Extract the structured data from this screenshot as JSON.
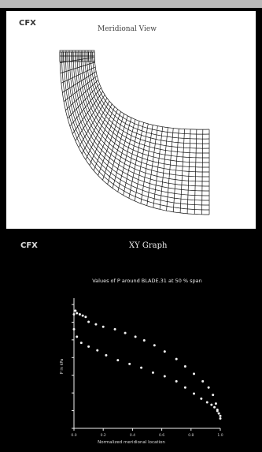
{
  "window": {
    "topbar_color": "#b9b9b9"
  },
  "meridional_view": {
    "brand": "CFX",
    "title": "Meridional View",
    "mesh_color": "#111111",
    "background": "#ffffff"
  },
  "xy_graph": {
    "brand": "CFX",
    "title": "XY Graph",
    "background": "#000000",
    "chart_data": {
      "type": "scatter",
      "title": "Values of P around BLADE.31 at 50 % span",
      "xlabel": "Normalized meridional location",
      "ylabel": "P in kPa",
      "xlim": [
        0,
        1
      ],
      "ylim": [
        0,
        1
      ],
      "x_ticks": [
        "0.0",
        "0.2",
        "0.4",
        "0.6",
        "0.8",
        "1.0"
      ],
      "y_ticks": [
        "",
        "",
        "",
        "",
        "",
        "",
        "",
        ""
      ],
      "series": [
        {
          "values": [
            [
              0.0,
              0.92
            ],
            [
              0.01,
              0.95
            ],
            [
              0.02,
              0.93
            ],
            [
              0.04,
              0.92
            ],
            [
              0.06,
              0.91
            ],
            [
              0.08,
              0.9
            ],
            [
              0.1,
              0.86
            ],
            [
              0.15,
              0.84
            ],
            [
              0.2,
              0.82
            ],
            [
              0.28,
              0.8
            ],
            [
              0.35,
              0.77
            ],
            [
              0.42,
              0.74
            ],
            [
              0.48,
              0.71
            ],
            [
              0.55,
              0.67
            ],
            [
              0.62,
              0.62
            ],
            [
              0.7,
              0.56
            ],
            [
              0.76,
              0.5
            ],
            [
              0.82,
              0.44
            ],
            [
              0.88,
              0.38
            ],
            [
              0.92,
              0.33
            ],
            [
              0.95,
              0.27
            ],
            [
              0.97,
              0.2
            ],
            [
              0.98,
              0.14
            ],
            [
              1.0,
              0.08
            ]
          ]
        },
        {
          "values": [
            [
              0.0,
              0.8
            ],
            [
              0.02,
              0.74
            ],
            [
              0.05,
              0.69
            ],
            [
              0.1,
              0.66
            ],
            [
              0.16,
              0.63
            ],
            [
              0.22,
              0.59
            ],
            [
              0.3,
              0.55
            ],
            [
              0.38,
              0.52
            ],
            [
              0.46,
              0.49
            ],
            [
              0.54,
              0.45
            ],
            [
              0.62,
              0.42
            ],
            [
              0.7,
              0.38
            ],
            [
              0.76,
              0.33
            ],
            [
              0.82,
              0.28
            ],
            [
              0.87,
              0.24
            ],
            [
              0.91,
              0.21
            ],
            [
              0.94,
              0.19
            ],
            [
              0.96,
              0.17
            ],
            [
              0.98,
              0.15
            ],
            [
              0.99,
              0.12
            ],
            [
              1.0,
              0.1
            ]
          ]
        }
      ],
      "point_color": "#f2f2f2",
      "axis_color": "#f2f2f2"
    }
  }
}
